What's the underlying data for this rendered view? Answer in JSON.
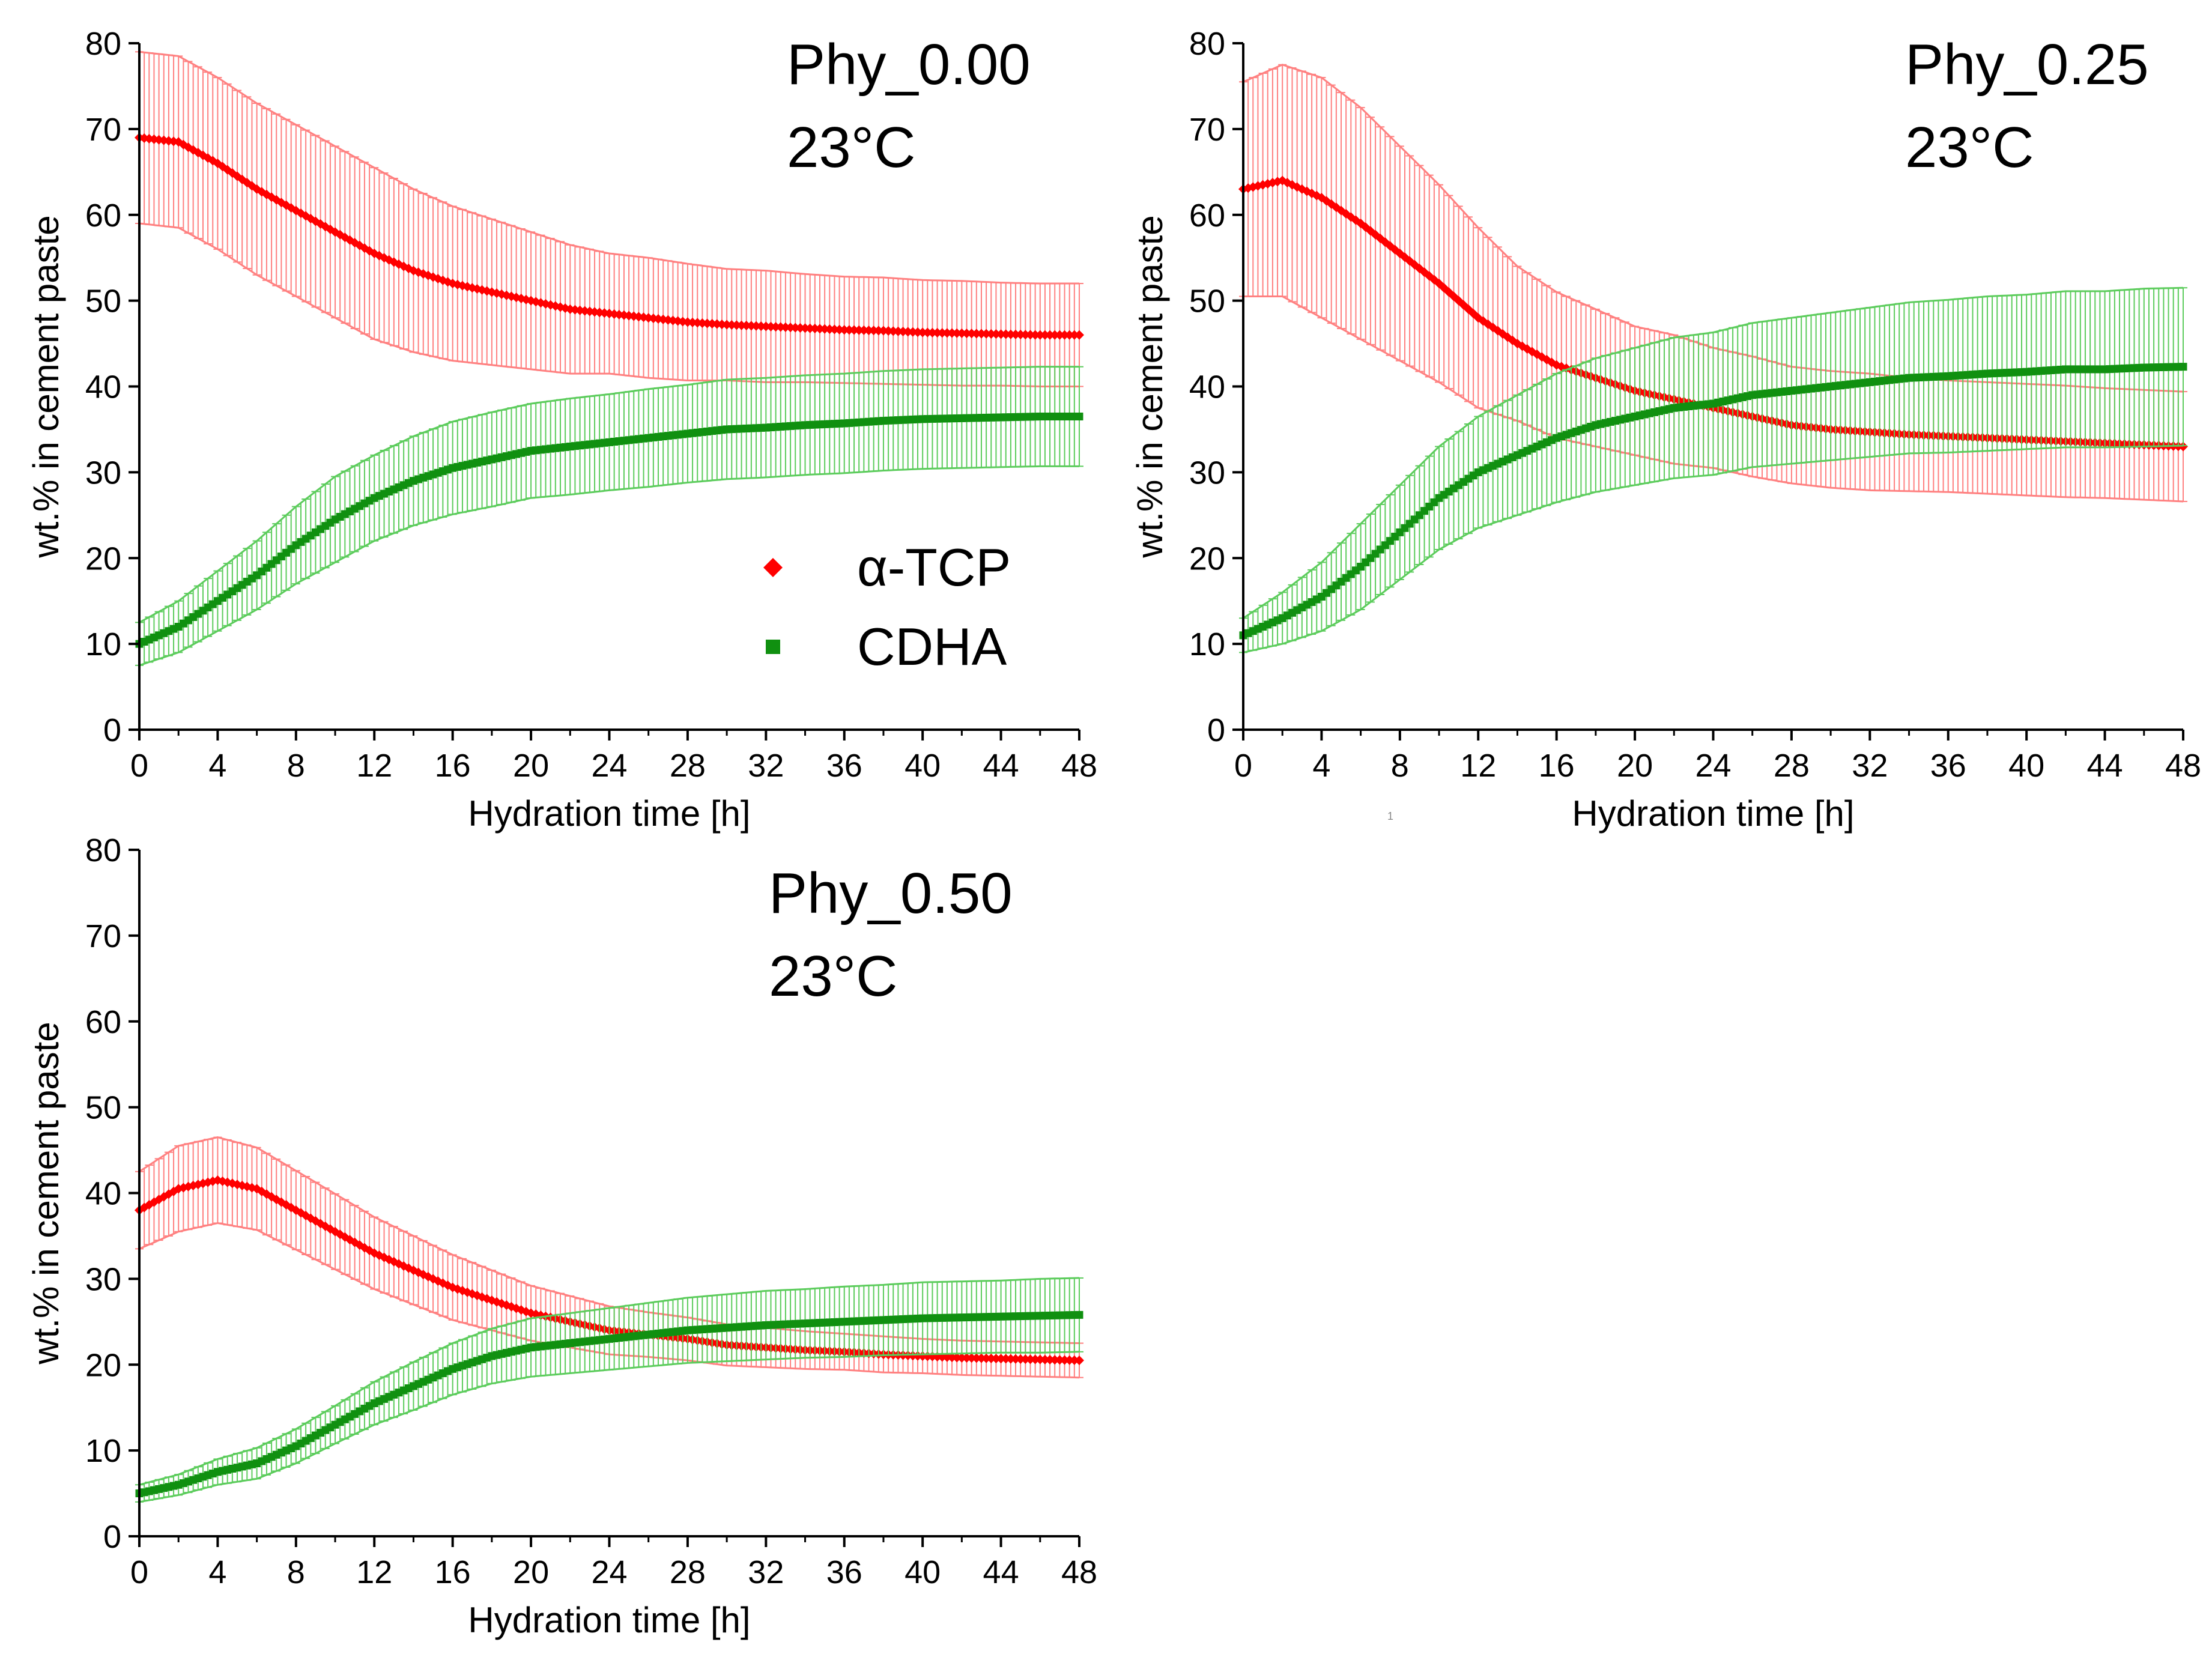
{
  "figure": {
    "colors": {
      "alpha_tcp": "#ff0000",
      "alpha_tcp_error": "#ff8080",
      "cdha": "#109010",
      "cdha_error": "#5ccc5c",
      "axis": "#000000"
    },
    "stray_mark": "1"
  },
  "chart_data": [
    {
      "type": "line",
      "title": "Phy_0.00",
      "subtitle": "23°C",
      "xlabel": "Hydration time [h]",
      "ylabel": "wt.% in cement paste",
      "xlim": [
        0,
        48
      ],
      "ylim": [
        0,
        80
      ],
      "xticks": [
        0,
        4,
        8,
        12,
        16,
        20,
        24,
        28,
        32,
        36,
        40,
        44,
        48
      ],
      "yticks": [
        0,
        10,
        20,
        30,
        40,
        50,
        60,
        70,
        80
      ],
      "legend": {
        "position": "center-right",
        "entries": [
          {
            "label": "α-TCP",
            "marker": "diamond",
            "color_key": "alpha_tcp"
          },
          {
            "label": "CDHA",
            "marker": "square",
            "color_key": "cdha"
          }
        ]
      },
      "series": [
        {
          "name": "α-TCP",
          "color_key": "alpha_tcp",
          "marker": "diamond",
          "x": [
            0,
            2,
            4,
            6,
            8,
            10,
            12,
            14,
            16,
            18,
            20,
            22,
            24,
            26,
            28,
            30,
            32,
            34,
            36,
            38,
            40,
            42,
            44,
            46,
            48
          ],
          "y": [
            69,
            68.5,
            66,
            63,
            60.5,
            58,
            55.5,
            53.5,
            52,
            51,
            50,
            49,
            48.5,
            48,
            47.5,
            47.2,
            47,
            46.8,
            46.6,
            46.5,
            46.3,
            46.2,
            46.1,
            46,
            46
          ],
          "error": [
            10,
            10,
            10,
            10,
            10,
            10,
            10,
            9.5,
            9,
            8.5,
            8,
            7.5,
            7,
            7,
            6.8,
            6.5,
            6.5,
            6.3,
            6.2,
            6.2,
            6.1,
            6.1,
            6,
            6,
            6
          ]
        },
        {
          "name": "CDHA",
          "color_key": "cdha",
          "marker": "square",
          "x": [
            0,
            2,
            4,
            6,
            8,
            10,
            12,
            14,
            16,
            18,
            20,
            22,
            24,
            26,
            28,
            30,
            32,
            34,
            36,
            38,
            40,
            42,
            44,
            46,
            48
          ],
          "y": [
            10,
            12,
            15,
            18,
            21.5,
            24.5,
            27,
            29,
            30.5,
            31.5,
            32.5,
            33,
            33.5,
            34,
            34.5,
            35,
            35.2,
            35.5,
            35.7,
            36,
            36.2,
            36.3,
            36.4,
            36.5,
            36.5
          ],
          "error": [
            2.5,
            3,
            3.5,
            4,
            4.5,
            5,
            5,
            5.2,
            5.4,
            5.5,
            5.5,
            5.6,
            5.6,
            5.7,
            5.7,
            5.8,
            5.8,
            5.8,
            5.8,
            5.8,
            5.8,
            5.8,
            5.8,
            5.8,
            5.8
          ]
        }
      ]
    },
    {
      "type": "line",
      "title": "Phy_0.25",
      "subtitle": "23°C",
      "xlabel": "Hydration time [h]",
      "ylabel": "wt.% in cement paste",
      "xlim": [
        0,
        48
      ],
      "ylim": [
        0,
        80
      ],
      "xticks": [
        0,
        4,
        8,
        12,
        16,
        20,
        24,
        28,
        32,
        36,
        40,
        44,
        48
      ],
      "yticks": [
        0,
        10,
        20,
        30,
        40,
        50,
        60,
        70,
        80
      ],
      "series": [
        {
          "name": "α-TCP",
          "color_key": "alpha_tcp",
          "marker": "diamond",
          "x": [
            0,
            2,
            4,
            6,
            8,
            10,
            12,
            14,
            16,
            18,
            20,
            22,
            24,
            26,
            28,
            30,
            32,
            34,
            36,
            38,
            40,
            42,
            44,
            46,
            48
          ],
          "y": [
            63,
            64,
            62,
            59,
            55.5,
            52,
            48,
            45,
            42.5,
            41,
            39.5,
            38.5,
            37.5,
            36.5,
            35.5,
            35,
            34.7,
            34.4,
            34.2,
            34,
            33.8,
            33.6,
            33.4,
            33.2,
            33
          ],
          "error": [
            12.5,
            13.5,
            14,
            13.5,
            12.5,
            11.5,
            10.5,
            9,
            8.5,
            8,
            7.5,
            7.5,
            7,
            7,
            6.8,
            6.8,
            6.8,
            6.6,
            6.5,
            6.5,
            6.5,
            6.5,
            6.4,
            6.4,
            6.4
          ]
        },
        {
          "name": "CDHA",
          "color_key": "cdha",
          "marker": "square",
          "x": [
            0,
            2,
            4,
            6,
            8,
            10,
            12,
            14,
            16,
            18,
            20,
            22,
            24,
            26,
            28,
            30,
            32,
            34,
            36,
            38,
            40,
            42,
            44,
            46,
            48
          ],
          "y": [
            11,
            13,
            15.5,
            19,
            23,
            27,
            30,
            32,
            34,
            35.5,
            36.5,
            37.5,
            38,
            39,
            39.5,
            40,
            40.5,
            41,
            41.2,
            41.5,
            41.7,
            42,
            42,
            42.2,
            42.3
          ],
          "error": [
            2,
            3,
            4,
            5,
            5.5,
            6,
            6.5,
            7,
            7.5,
            7.8,
            8,
            8.2,
            8.3,
            8.4,
            8.5,
            8.6,
            8.7,
            8.8,
            8.9,
            9,
            9,
            9.1,
            9.1,
            9.2,
            9.2
          ]
        }
      ]
    },
    {
      "type": "line",
      "title": "Phy_0.50",
      "subtitle": "23°C",
      "xlabel": "Hydration time [h]",
      "ylabel": "wt.% in cement paste",
      "xlim": [
        0,
        48
      ],
      "ylim": [
        0,
        80
      ],
      "xticks": [
        0,
        4,
        8,
        12,
        16,
        20,
        24,
        28,
        32,
        36,
        40,
        44,
        48
      ],
      "yticks": [
        0,
        10,
        20,
        30,
        40,
        50,
        60,
        70,
        80
      ],
      "series": [
        {
          "name": "α-TCP",
          "color_key": "alpha_tcp",
          "marker": "diamond",
          "x": [
            0,
            2,
            4,
            6,
            8,
            10,
            12,
            14,
            16,
            18,
            20,
            22,
            24,
            26,
            28,
            30,
            32,
            34,
            36,
            38,
            40,
            42,
            44,
            46,
            48
          ],
          "y": [
            38,
            40.5,
            41.5,
            40.5,
            38,
            35.5,
            33,
            31,
            29,
            27.5,
            26,
            25,
            24,
            23.5,
            23,
            22.3,
            22,
            21.7,
            21.5,
            21.2,
            21,
            20.8,
            20.7,
            20.6,
            20.5
          ],
          "error": [
            4.5,
            5,
            5,
            4.8,
            4.6,
            4.4,
            4.2,
            4,
            3.8,
            3.5,
            3.2,
            3,
            2.8,
            2.6,
            2.5,
            2.4,
            2.3,
            2.2,
            2.1,
            2.1,
            2,
            2,
            2,
            2,
            2
          ]
        },
        {
          "name": "CDHA",
          "color_key": "cdha",
          "marker": "square",
          "x": [
            0,
            2,
            4,
            6,
            8,
            10,
            12,
            14,
            16,
            18,
            20,
            22,
            24,
            26,
            28,
            30,
            32,
            34,
            36,
            38,
            40,
            42,
            44,
            46,
            48
          ],
          "y": [
            5,
            6,
            7.5,
            8.5,
            10.5,
            13,
            15.5,
            17.5,
            19.5,
            21,
            22,
            22.5,
            23,
            23.5,
            24,
            24.3,
            24.6,
            24.8,
            25,
            25.2,
            25.4,
            25.5,
            25.6,
            25.7,
            25.8
          ],
          "error": [
            1,
            1.2,
            1.5,
            1.8,
            2,
            2.2,
            2.5,
            2.8,
            3,
            3.2,
            3.4,
            3.5,
            3.6,
            3.7,
            3.8,
            3.9,
            4,
            4,
            4.1,
            4.1,
            4.2,
            4.2,
            4.2,
            4.3,
            4.3
          ]
        }
      ]
    }
  ]
}
